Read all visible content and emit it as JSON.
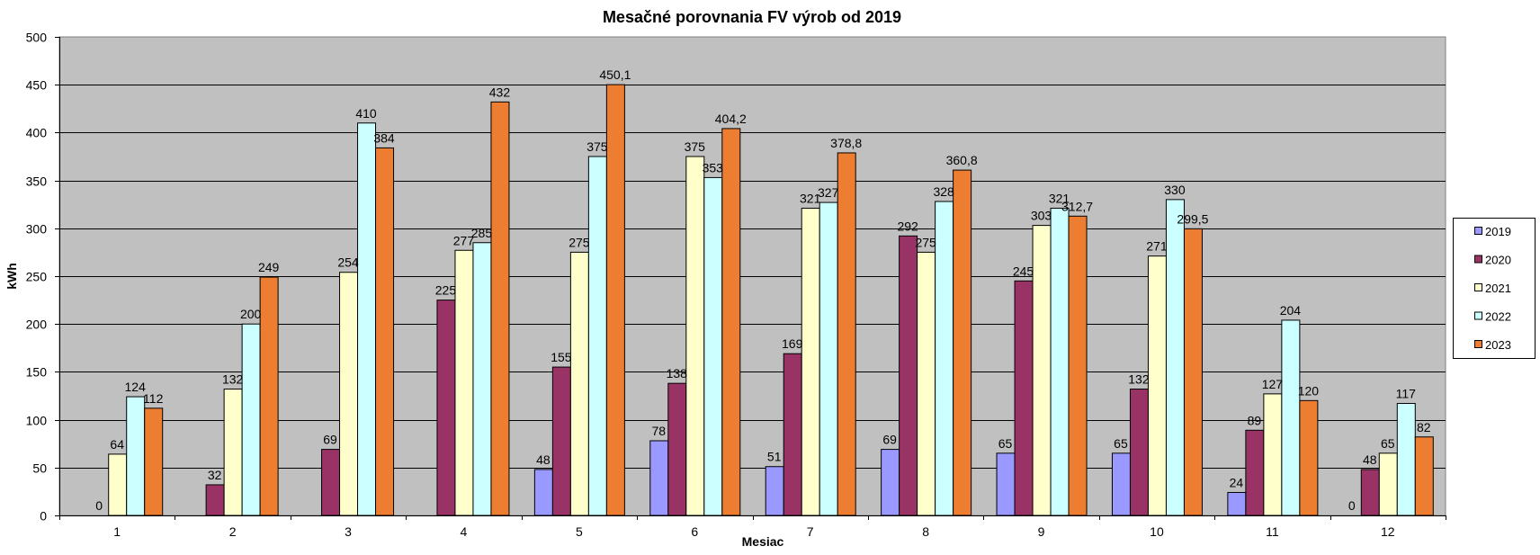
{
  "chart_data": {
    "type": "bar",
    "title": "Mesačné porovnania FV výrob od 2019",
    "xlabel": "Mesiac",
    "ylabel": "kWh",
    "ylim": [
      0,
      500
    ],
    "ytick_step": 50,
    "yticks": [
      "0",
      "50",
      "100",
      "150",
      "200",
      "250",
      "300",
      "350",
      "400",
      "450",
      "500"
    ],
    "grid": true,
    "legend_position": "right",
    "plot_background": "#C0C0C0",
    "categories": [
      "1",
      "2",
      "3",
      "4",
      "5",
      "6",
      "7",
      "8",
      "9",
      "10",
      "11",
      "12"
    ],
    "series": [
      {
        "name": "2019",
        "color": "#9999FF",
        "values": [
          null,
          null,
          null,
          null,
          48,
          78,
          51,
          69,
          65,
          65,
          24,
          0
        ],
        "labels": [
          null,
          null,
          null,
          null,
          "48",
          "78",
          "51",
          "69",
          "65",
          "65",
          "24",
          "0"
        ]
      },
      {
        "name": "2020",
        "color": "#993366",
        "values": [
          0,
          32,
          69,
          225,
          155,
          138,
          169,
          292,
          245,
          132,
          89,
          48
        ],
        "labels": [
          "0",
          "32",
          "69",
          "225",
          "155",
          "138",
          "169",
          "292",
          "245",
          "132",
          "89",
          "48"
        ]
      },
      {
        "name": "2021",
        "color": "#FFFFCC",
        "values": [
          64,
          132,
          254,
          277,
          275,
          375,
          321,
          275,
          303,
          271,
          127,
          65
        ],
        "labels": [
          "64",
          "132",
          "254",
          "277",
          "275",
          "375",
          "321",
          "275",
          "303",
          "271",
          "127",
          "65"
        ]
      },
      {
        "name": "2022",
        "color": "#CCFFFF",
        "values": [
          124,
          200,
          410,
          285,
          375,
          353,
          327,
          328,
          321,
          330,
          204,
          117
        ],
        "labels": [
          "124",
          "200",
          "410",
          "285",
          "375",
          "353",
          "327",
          "328",
          "321",
          "330",
          "204",
          "117"
        ]
      },
      {
        "name": "2023",
        "color": "#ED7D31",
        "values": [
          112,
          249,
          384,
          432,
          450.1,
          404.2,
          378.8,
          360.8,
          312.7,
          299.5,
          120,
          82
        ],
        "labels": [
          "112",
          "249",
          "384",
          "432",
          "450,1",
          "404,2",
          "378,8",
          "360,8",
          "312,7",
          "299,5",
          "120",
          "82"
        ]
      }
    ]
  }
}
